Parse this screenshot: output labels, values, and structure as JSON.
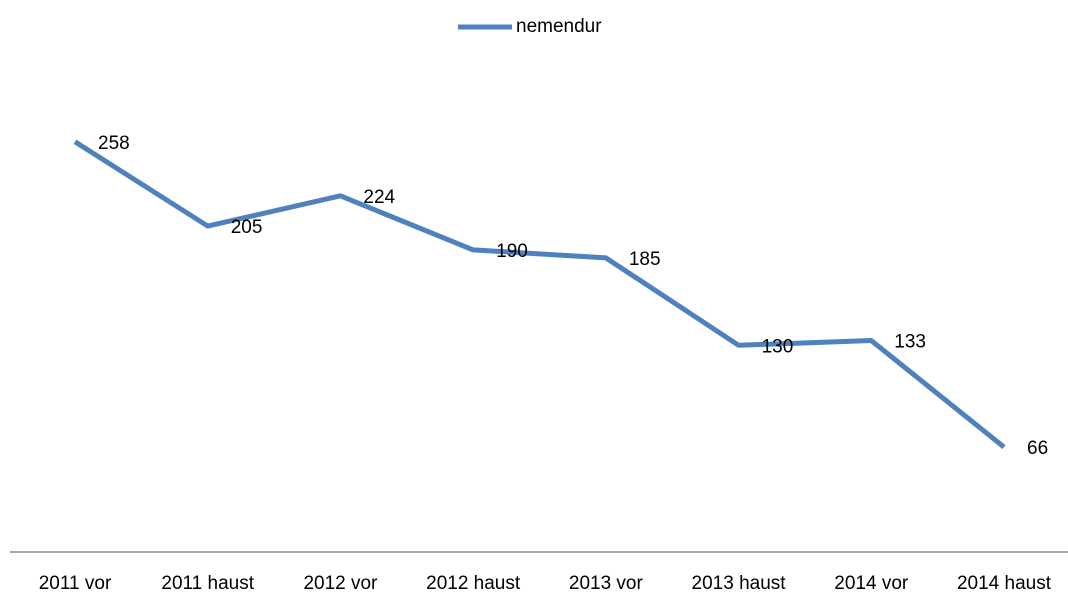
{
  "chart_data": {
    "type": "line",
    "categories": [
      "2011 vor",
      "2011 haust",
      "2012 vor",
      "2012 haust",
      "2013 vor",
      "2013 haust",
      "2014 vor",
      "2014 haust"
    ],
    "series": [
      {
        "name": "nemendur",
        "color": "#4f81bd",
        "values": [
          258,
          205,
          224,
          190,
          185,
          130,
          133,
          66
        ]
      }
    ],
    "ylim": [
      0,
      300
    ],
    "legend": "top"
  }
}
